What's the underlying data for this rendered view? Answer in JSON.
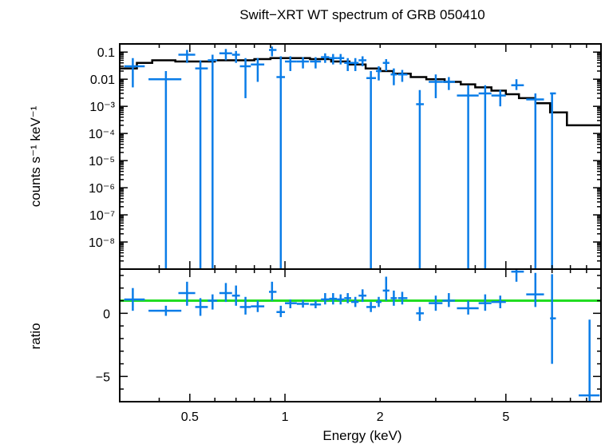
{
  "chart_data": [
    {
      "type": "scatter",
      "title": "Swift−XRT WT spectrum of GRB 050410",
      "xlabel": "",
      "ylabel": "counts s⁻¹ keV⁻¹",
      "xscale": "log",
      "yscale": "log",
      "xlim": [
        0.3,
        10.0
      ],
      "ylim": [
        1e-09,
        0.2
      ],
      "y_tick_labels": [
        "0.1",
        "0.01",
        "10⁻³",
        "10⁻⁴",
        "10⁻⁵",
        "10⁻⁶",
        "10⁻⁷",
        "10⁻⁸"
      ],
      "y_tick_values": [
        0.1,
        0.01,
        0.001,
        0.0001,
        1e-05,
        1e-06,
        1e-07,
        1e-08
      ],
      "colors": {
        "data": "#0a7de8",
        "model": "#000000"
      },
      "series": [
        {
          "kind": "data",
          "points": [
            {
              "x": 0.33,
              "xlo": 0.31,
              "xhi": 0.36,
              "y": 0.03,
              "ylo": 0.005,
              "yhi": 0.06
            },
            {
              "x": 0.42,
              "xlo": 0.37,
              "xhi": 0.47,
              "y": 0.01,
              "ylo": 1e-09,
              "yhi": 0.02
            },
            {
              "x": 0.49,
              "xlo": 0.46,
              "xhi": 0.52,
              "y": 0.08,
              "ylo": 0.04,
              "yhi": 0.12
            },
            {
              "x": 0.54,
              "xlo": 0.52,
              "xhi": 0.57,
              "y": 0.025,
              "ylo": 1e-09,
              "yhi": 0.05
            },
            {
              "x": 0.59,
              "xlo": 0.57,
              "xhi": 0.61,
              "y": 0.05,
              "ylo": 1e-09,
              "yhi": 0.08
            },
            {
              "x": 0.65,
              "xlo": 0.62,
              "xhi": 0.68,
              "y": 0.09,
              "ylo": 0.05,
              "yhi": 0.13
            },
            {
              "x": 0.7,
              "xlo": 0.68,
              "xhi": 0.72,
              "y": 0.08,
              "ylo": 0.04,
              "yhi": 0.11
            },
            {
              "x": 0.75,
              "xlo": 0.72,
              "xhi": 0.78,
              "y": 0.03,
              "ylo": 0.002,
              "yhi": 0.06
            },
            {
              "x": 0.82,
              "xlo": 0.78,
              "xhi": 0.86,
              "y": 0.035,
              "ylo": 0.008,
              "yhi": 0.06
            },
            {
              "x": 0.91,
              "xlo": 0.89,
              "xhi": 0.94,
              "y": 0.12,
              "ylo": 0.07,
              "yhi": 0.16
            },
            {
              "x": 0.97,
              "xlo": 0.94,
              "xhi": 1.0,
              "y": 0.012,
              "ylo": 1e-09,
              "yhi": 0.07
            },
            {
              "x": 1.04,
              "xlo": 1.0,
              "xhi": 1.09,
              "y": 0.045,
              "ylo": 0.02,
              "yhi": 0.07
            },
            {
              "x": 1.14,
              "xlo": 1.09,
              "xhi": 1.19,
              "y": 0.045,
              "ylo": 0.025,
              "yhi": 0.065
            },
            {
              "x": 1.25,
              "xlo": 1.2,
              "xhi": 1.3,
              "y": 0.045,
              "ylo": 0.025,
              "yhi": 0.065
            },
            {
              "x": 1.34,
              "xlo": 1.3,
              "xhi": 1.38,
              "y": 0.065,
              "ylo": 0.04,
              "yhi": 0.09
            },
            {
              "x": 1.42,
              "xlo": 1.38,
              "xhi": 1.46,
              "y": 0.06,
              "ylo": 0.035,
              "yhi": 0.085
            },
            {
              "x": 1.5,
              "xlo": 1.46,
              "xhi": 1.54,
              "y": 0.06,
              "ylo": 0.035,
              "yhi": 0.085
            },
            {
              "x": 1.58,
              "xlo": 1.54,
              "xhi": 1.62,
              "y": 0.04,
              "ylo": 0.02,
              "yhi": 0.06
            },
            {
              "x": 1.67,
              "xlo": 1.62,
              "xhi": 1.71,
              "y": 0.04,
              "ylo": 0.02,
              "yhi": 0.06
            },
            {
              "x": 1.76,
              "xlo": 1.71,
              "xhi": 1.81,
              "y": 0.05,
              "ylo": 0.03,
              "yhi": 0.07
            },
            {
              "x": 1.87,
              "xlo": 1.81,
              "xhi": 1.94,
              "y": 0.011,
              "ylo": 1e-09,
              "yhi": 0.02
            },
            {
              "x": 1.98,
              "xlo": 1.94,
              "xhi": 2.02,
              "y": 0.02,
              "ylo": 0.009,
              "yhi": 0.03
            },
            {
              "x": 2.09,
              "xlo": 2.04,
              "xhi": 2.14,
              "y": 0.04,
              "ylo": 0.02,
              "yhi": 0.055
            },
            {
              "x": 2.21,
              "xlo": 2.16,
              "xhi": 2.26,
              "y": 0.015,
              "ylo": 0.006,
              "yhi": 0.025
            },
            {
              "x": 2.35,
              "xlo": 2.28,
              "xhi": 2.44,
              "y": 0.015,
              "ylo": 0.008,
              "yhi": 0.022
            },
            {
              "x": 2.67,
              "xlo": 2.6,
              "xhi": 2.75,
              "y": 0.0012,
              "ylo": 1e-09,
              "yhi": 0.004
            },
            {
              "x": 3.0,
              "xlo": 2.85,
              "xhi": 3.15,
              "y": 0.008,
              "ylo": 0.002,
              "yhi": 0.015
            },
            {
              "x": 3.3,
              "xlo": 3.15,
              "xhi": 3.45,
              "y": 0.008,
              "ylo": 0.004,
              "yhi": 0.012
            },
            {
              "x": 3.8,
              "xlo": 3.5,
              "xhi": 4.1,
              "y": 0.0025,
              "ylo": 1e-09,
              "yhi": 0.006
            },
            {
              "x": 4.3,
              "xlo": 4.1,
              "xhi": 4.5,
              "y": 0.003,
              "ylo": 1e-09,
              "yhi": 0.006
            },
            {
              "x": 4.8,
              "xlo": 4.5,
              "xhi": 5.0,
              "y": 0.0025,
              "ylo": 0.001,
              "yhi": 0.004
            },
            {
              "x": 5.4,
              "xlo": 5.2,
              "xhi": 5.7,
              "y": 0.006,
              "ylo": 0.004,
              "yhi": 0.01
            },
            {
              "x": 6.2,
              "xlo": 5.8,
              "xhi": 6.6,
              "y": 0.0018,
              "ylo": 1e-09,
              "yhi": 0.003
            },
            {
              "x": 7.0,
              "xlo": 6.9,
              "xhi": 7.2,
              "y": 0.003,
              "ylo": 1e-09,
              "yhi": 0.003
            }
          ]
        },
        {
          "kind": "model",
          "bins": [
            {
              "xlo": 0.3,
              "xhi": 0.34,
              "y": 0.025
            },
            {
              "xlo": 0.34,
              "xhi": 0.38,
              "y": 0.04
            },
            {
              "xlo": 0.38,
              "xhi": 0.45,
              "y": 0.05
            },
            {
              "xlo": 0.45,
              "xhi": 0.52,
              "y": 0.045
            },
            {
              "xlo": 0.52,
              "xhi": 0.6,
              "y": 0.045
            },
            {
              "xlo": 0.6,
              "xhi": 0.7,
              "y": 0.05
            },
            {
              "xlo": 0.7,
              "xhi": 0.8,
              "y": 0.05
            },
            {
              "xlo": 0.8,
              "xhi": 0.9,
              "y": 0.055
            },
            {
              "xlo": 0.9,
              "xhi": 1.0,
              "y": 0.06
            },
            {
              "xlo": 1.0,
              "xhi": 1.2,
              "y": 0.06
            },
            {
              "xlo": 1.2,
              "xhi": 1.4,
              "y": 0.055
            },
            {
              "xlo": 1.4,
              "xhi": 1.6,
              "y": 0.045
            },
            {
              "xlo": 1.6,
              "xhi": 1.8,
              "y": 0.035
            },
            {
              "xlo": 1.8,
              "xhi": 2.0,
              "y": 0.025
            },
            {
              "xlo": 2.0,
              "xhi": 2.2,
              "y": 0.02
            },
            {
              "xlo": 2.2,
              "xhi": 2.5,
              "y": 0.016
            },
            {
              "xlo": 2.5,
              "xhi": 2.8,
              "y": 0.012
            },
            {
              "xlo": 2.8,
              "xhi": 3.2,
              "y": 0.01
            },
            {
              "xlo": 3.2,
              "xhi": 3.6,
              "y": 0.008
            },
            {
              "xlo": 3.6,
              "xhi": 4.0,
              "y": 0.0065
            },
            {
              "xlo": 4.0,
              "xhi": 4.5,
              "y": 0.005
            },
            {
              "xlo": 4.5,
              "xhi": 5.0,
              "y": 0.0038
            },
            {
              "xlo": 5.0,
              "xhi": 5.5,
              "y": 0.0028
            },
            {
              "xlo": 5.5,
              "xhi": 6.2,
              "y": 0.002
            },
            {
              "xlo": 6.2,
              "xhi": 6.9,
              "y": 0.0013
            },
            {
              "xlo": 6.9,
              "xhi": 7.8,
              "y": 0.0006
            },
            {
              "xlo": 7.8,
              "xhi": 9.0,
              "y": 0.0002
            },
            {
              "xlo": 9.0,
              "xhi": 10.0,
              "y": 0.0002
            }
          ]
        }
      ]
    },
    {
      "type": "scatter",
      "xlabel": "Energy (keV)",
      "ylabel": "ratio",
      "xscale": "log",
      "xlim": [
        0.3,
        10.0
      ],
      "ylim": [
        -7,
        3.5
      ],
      "x_tick_labels": [
        "0.5",
        "1",
        "2",
        "5"
      ],
      "x_tick_values": [
        0.5,
        1,
        2,
        5
      ],
      "y_tick_labels": [
        "0",
        "−5"
      ],
      "y_tick_values": [
        0,
        -5
      ],
      "reference_line": 1,
      "colors": {
        "data": "#0a7de8",
        "reference": "#22dd22"
      },
      "series": [
        {
          "kind": "data",
          "points": [
            {
              "x": 0.33,
              "xlo": 0.31,
              "xhi": 0.36,
              "y": 1.1,
              "ylo": 0.2,
              "yhi": 2.0
            },
            {
              "x": 0.42,
              "xlo": 0.37,
              "xhi": 0.47,
              "y": 0.2,
              "ylo": -0.2,
              "yhi": 0.6
            },
            {
              "x": 0.49,
              "xlo": 0.46,
              "xhi": 0.52,
              "y": 1.6,
              "ylo": 0.6,
              "yhi": 2.5
            },
            {
              "x": 0.54,
              "xlo": 0.52,
              "xhi": 0.57,
              "y": 0.5,
              "ylo": -0.2,
              "yhi": 1.2
            },
            {
              "x": 0.59,
              "xlo": 0.57,
              "xhi": 0.61,
              "y": 1.0,
              "ylo": 0.3,
              "yhi": 1.5
            },
            {
              "x": 0.65,
              "xlo": 0.62,
              "xhi": 0.68,
              "y": 1.6,
              "ylo": 0.9,
              "yhi": 2.4
            },
            {
              "x": 0.7,
              "xlo": 0.68,
              "xhi": 0.72,
              "y": 1.4,
              "ylo": 0.6,
              "yhi": 2.2
            },
            {
              "x": 0.75,
              "xlo": 0.72,
              "xhi": 0.78,
              "y": 0.5,
              "ylo": -0.1,
              "yhi": 1.3
            },
            {
              "x": 0.82,
              "xlo": 0.78,
              "xhi": 0.86,
              "y": 0.55,
              "ylo": 0.1,
              "yhi": 1.0
            },
            {
              "x": 0.91,
              "xlo": 0.89,
              "xhi": 0.94,
              "y": 1.7,
              "ylo": 1.0,
              "yhi": 2.5
            },
            {
              "x": 0.97,
              "xlo": 0.94,
              "xhi": 1.0,
              "y": 0.1,
              "ylo": -0.3,
              "yhi": 0.6
            },
            {
              "x": 1.04,
              "xlo": 1.0,
              "xhi": 1.09,
              "y": 0.8,
              "ylo": 0.4,
              "yhi": 1.1
            },
            {
              "x": 1.14,
              "xlo": 1.09,
              "xhi": 1.19,
              "y": 0.75,
              "ylo": 0.45,
              "yhi": 1.05
            },
            {
              "x": 1.25,
              "xlo": 1.2,
              "xhi": 1.3,
              "y": 0.7,
              "ylo": 0.4,
              "yhi": 1.0
            },
            {
              "x": 1.34,
              "xlo": 1.3,
              "xhi": 1.38,
              "y": 1.1,
              "ylo": 0.7,
              "yhi": 1.6
            },
            {
              "x": 1.42,
              "xlo": 1.38,
              "xhi": 1.46,
              "y": 1.15,
              "ylo": 0.7,
              "yhi": 1.6
            },
            {
              "x": 1.5,
              "xlo": 1.46,
              "xhi": 1.54,
              "y": 1.1,
              "ylo": 0.7,
              "yhi": 1.5
            },
            {
              "x": 1.58,
              "xlo": 1.54,
              "xhi": 1.62,
              "y": 1.2,
              "ylo": 0.8,
              "yhi": 1.6
            },
            {
              "x": 1.67,
              "xlo": 1.62,
              "xhi": 1.71,
              "y": 0.9,
              "ylo": 0.5,
              "yhi": 1.3
            },
            {
              "x": 1.76,
              "xlo": 1.71,
              "xhi": 1.81,
              "y": 1.4,
              "ylo": 0.9,
              "yhi": 1.9
            },
            {
              "x": 1.87,
              "xlo": 1.81,
              "xhi": 1.94,
              "y": 0.5,
              "ylo": 0.1,
              "yhi": 0.9
            },
            {
              "x": 1.98,
              "xlo": 1.94,
              "xhi": 2.02,
              "y": 0.9,
              "ylo": 0.5,
              "yhi": 1.3
            },
            {
              "x": 2.09,
              "xlo": 2.04,
              "xhi": 2.14,
              "y": 1.8,
              "ylo": 1.0,
              "yhi": 2.9
            },
            {
              "x": 2.21,
              "xlo": 2.16,
              "xhi": 2.26,
              "y": 1.2,
              "ylo": 0.6,
              "yhi": 1.8
            },
            {
              "x": 2.35,
              "xlo": 2.28,
              "xhi": 2.44,
              "y": 1.2,
              "ylo": 0.7,
              "yhi": 1.7
            },
            {
              "x": 2.67,
              "xlo": 2.6,
              "xhi": 2.75,
              "y": 0.0,
              "ylo": -0.6,
              "yhi": 0.5
            },
            {
              "x": 3.0,
              "xlo": 2.85,
              "xhi": 3.15,
              "y": 0.8,
              "ylo": 0.2,
              "yhi": 1.4
            },
            {
              "x": 3.3,
              "xlo": 3.15,
              "xhi": 3.45,
              "y": 1.0,
              "ylo": 0.5,
              "yhi": 1.6
            },
            {
              "x": 3.8,
              "xlo": 3.5,
              "xhi": 4.1,
              "y": 0.4,
              "ylo": -0.1,
              "yhi": 1.0
            },
            {
              "x": 4.3,
              "xlo": 4.1,
              "xhi": 4.5,
              "y": 0.8,
              "ylo": 0.2,
              "yhi": 1.5
            },
            {
              "x": 4.8,
              "xlo": 4.5,
              "xhi": 5.0,
              "y": 0.9,
              "ylo": 0.4,
              "yhi": 1.4
            },
            {
              "x": 5.4,
              "xlo": 5.2,
              "xhi": 5.7,
              "y": 3.3,
              "ylo": 2.5,
              "yhi": 3.5
            },
            {
              "x": 6.2,
              "xlo": 5.8,
              "xhi": 6.6,
              "y": 1.5,
              "ylo": 0.5,
              "yhi": 3.2
            },
            {
              "x": 7.0,
              "xlo": 6.9,
              "xhi": 7.2,
              "y": -0.4,
              "ylo": -4.0,
              "yhi": 3.1
            },
            {
              "x": 9.2,
              "xlo": 8.5,
              "xhi": 9.9,
              "y": -6.5,
              "ylo": -7.0,
              "yhi": -0.5
            }
          ]
        }
      ]
    }
  ]
}
